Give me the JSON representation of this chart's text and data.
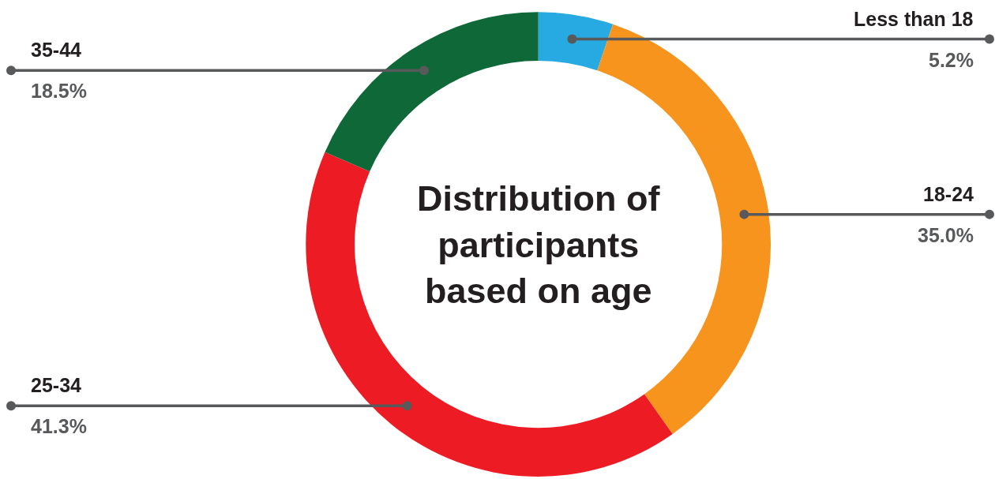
{
  "chart_data": {
    "type": "donut",
    "title": "Distribution of participants based on age",
    "categories": [
      "Less than 18",
      "18-24",
      "25-34",
      "35-44"
    ],
    "values": [
      5.2,
      35.0,
      41.3,
      18.5
    ],
    "colors": [
      "#27a9e1",
      "#f7941d",
      "#ed1c24",
      "#0e6838"
    ],
    "value_labels": [
      "5.2%",
      "35.0%",
      "41.3%",
      "18.5%"
    ]
  }
}
